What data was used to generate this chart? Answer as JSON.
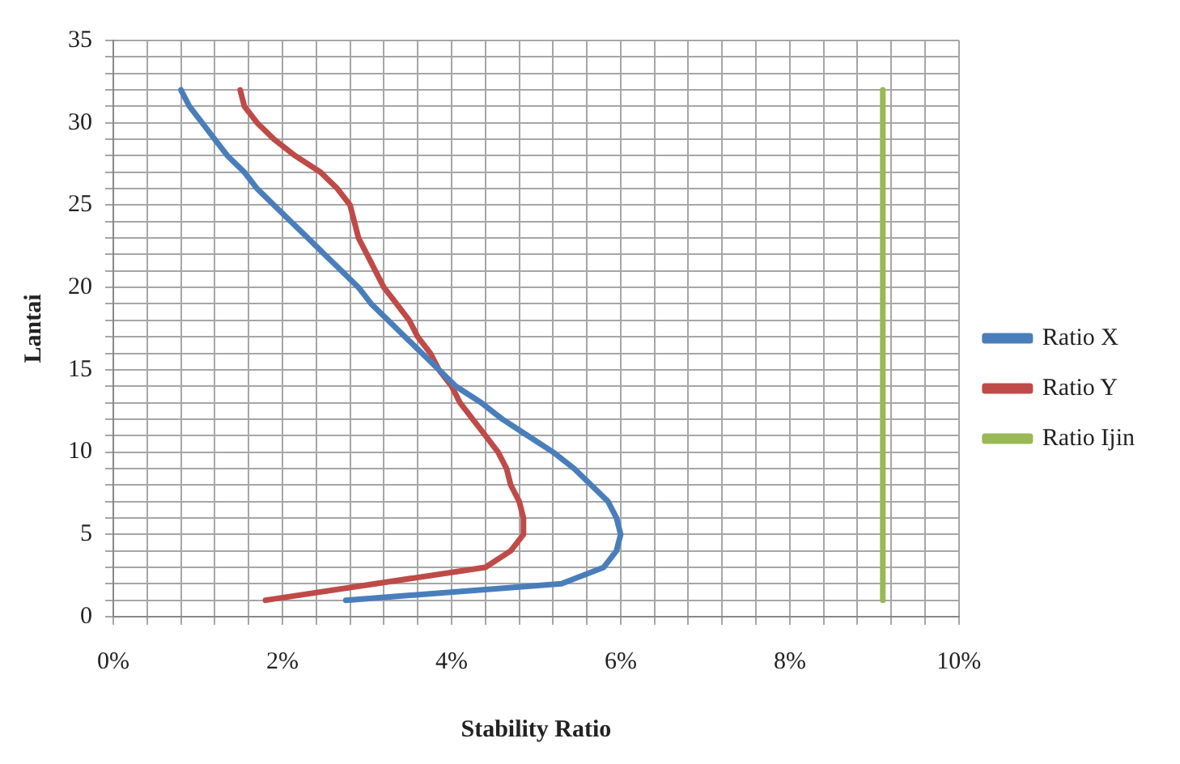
{
  "chart_data": {
    "type": "line",
    "xlabel": "Stability Ratio",
    "ylabel": "Lantai",
    "xlim": [
      0,
      10
    ],
    "xticks": [
      {
        "value": 0,
        "label": "0%"
      },
      {
        "value": 0.4,
        "label": null
      },
      {
        "value": 0.8,
        "label": null
      },
      {
        "value": 1.2,
        "label": null
      },
      {
        "value": 1.6,
        "label": null
      },
      {
        "value": 2,
        "label": "2%"
      },
      {
        "value": 2.4,
        "label": null
      },
      {
        "value": 2.8,
        "label": null
      },
      {
        "value": 3.2,
        "label": null
      },
      {
        "value": 3.6,
        "label": null
      },
      {
        "value": 4,
        "label": "4%"
      },
      {
        "value": 4.4,
        "label": null
      },
      {
        "value": 4.8,
        "label": null
      },
      {
        "value": 5.2,
        "label": null
      },
      {
        "value": 5.6,
        "label": null
      },
      {
        "value": 6,
        "label": "6%"
      },
      {
        "value": 6.4,
        "label": null
      },
      {
        "value": 6.8,
        "label": null
      },
      {
        "value": 7.2,
        "label": null
      },
      {
        "value": 7.6,
        "label": null
      },
      {
        "value": 8,
        "label": "8%"
      },
      {
        "value": 8.4,
        "label": null
      },
      {
        "value": 8.8,
        "label": null
      },
      {
        "value": 9.2,
        "label": null
      },
      {
        "value": 9.6,
        "label": null
      },
      {
        "value": 10,
        "label": "10%"
      }
    ],
    "ylim": [
      0,
      35
    ],
    "yticks": [
      0,
      {
        "value": 1,
        "label": null
      },
      {
        "value": 2,
        "label": null
      },
      {
        "value": 3,
        "label": null
      },
      {
        "value": 4,
        "label": null
      },
      5,
      {
        "value": 6,
        "label": null
      },
      {
        "value": 7,
        "label": null
      },
      {
        "value": 8,
        "label": null
      },
      {
        "value": 9,
        "label": null
      },
      10,
      {
        "value": 11,
        "label": null
      },
      {
        "value": 12,
        "label": null
      },
      {
        "value": 13,
        "label": null
      },
      {
        "value": 14,
        "label": null
      },
      15,
      {
        "value": 16,
        "label": null
      },
      {
        "value": 17,
        "label": null
      },
      {
        "value": 18,
        "label": null
      },
      {
        "value": 19,
        "label": null
      },
      20,
      {
        "value": 21,
        "label": null
      },
      {
        "value": 22,
        "label": null
      },
      {
        "value": 23,
        "label": null
      },
      {
        "value": 24,
        "label": null
      },
      25,
      {
        "value": 26,
        "label": null
      },
      {
        "value": 27,
        "label": null
      },
      {
        "value": 28,
        "label": null
      },
      {
        "value": 29,
        "label": null
      },
      30,
      {
        "value": 31,
        "label": null
      },
      {
        "value": 32,
        "label": null
      },
      {
        "value": 33,
        "label": null
      },
      {
        "value": 34,
        "label": null
      },
      35
    ],
    "grid": true,
    "legend": "right",
    "marker": "none",
    "line_style": "solid",
    "series": [
      {
        "name": "Ratio X",
        "color": "#4a7ebb",
        "x": [
          2.75,
          5.3,
          5.8,
          5.95,
          6.0,
          5.95,
          5.85,
          5.65,
          5.45,
          5.2,
          4.9,
          4.6,
          4.35,
          4.05,
          3.85,
          3.65,
          3.45,
          3.25,
          3.05,
          2.9,
          2.7,
          2.5,
          2.3,
          2.1,
          1.9,
          1.7,
          1.55,
          1.35,
          1.2,
          1.05,
          0.9,
          0.8
        ],
        "values": [
          1,
          2,
          3,
          4,
          5,
          6,
          7,
          8,
          9,
          10,
          11,
          12,
          13,
          14,
          15,
          16,
          17,
          18,
          19,
          20,
          21,
          22,
          23,
          24,
          25,
          26,
          27,
          28,
          29,
          30,
          31,
          32
        ]
      },
      {
        "name": "Ratio Y",
        "color": "#be4b48",
        "x": [
          1.8,
          3.1,
          4.4,
          4.7,
          4.85,
          4.85,
          4.8,
          4.7,
          4.65,
          4.55,
          4.4,
          4.25,
          4.1,
          4.0,
          3.85,
          3.75,
          3.6,
          3.5,
          3.35,
          3.2,
          3.1,
          3.0,
          2.9,
          2.85,
          2.8,
          2.65,
          2.45,
          2.15,
          1.9,
          1.7,
          1.55,
          1.5
        ],
        "values": [
          1,
          2,
          3,
          4,
          5,
          6,
          7,
          8,
          9,
          10,
          11,
          12,
          13,
          14,
          15,
          16,
          17,
          18,
          19,
          20,
          21,
          22,
          23,
          24,
          25,
          26,
          27,
          28,
          29,
          30,
          31,
          32
        ]
      },
      {
        "name": "Ratio Ijin",
        "color": "#98b954",
        "x": [
          9.1,
          9.1
        ],
        "values": [
          1,
          32
        ]
      }
    ]
  }
}
